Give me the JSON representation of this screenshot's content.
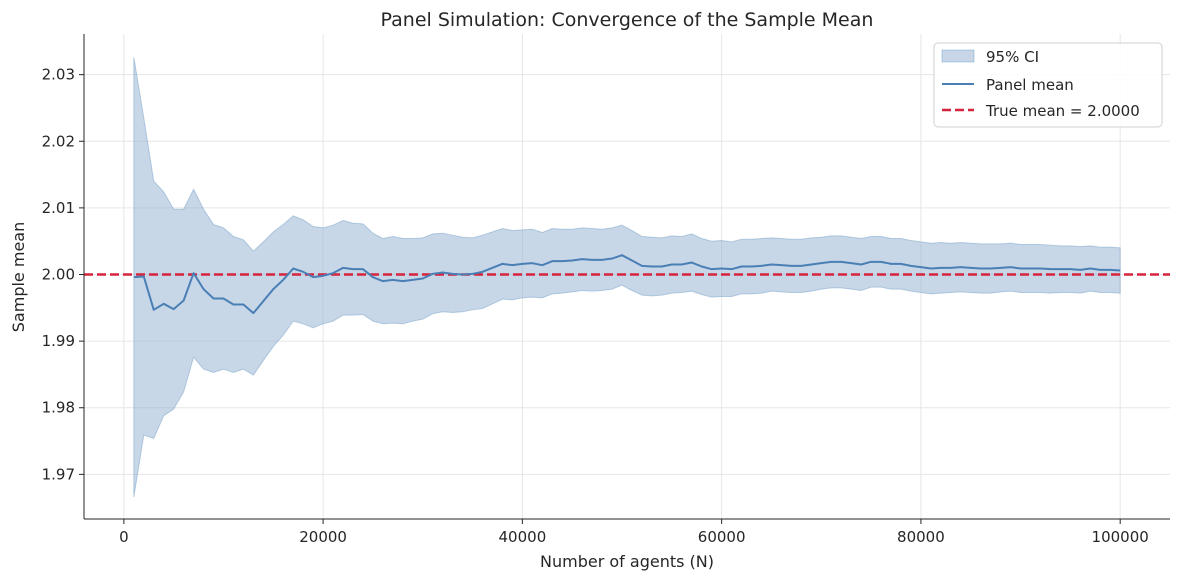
{
  "chart_data": {
    "type": "line",
    "title": "Panel Simulation: Convergence of the Sample Mean",
    "xlabel": "Number of agents (N)",
    "ylabel": "Sample mean",
    "xlim": [
      -4000,
      105000
    ],
    "ylim": [
      1.9633,
      2.0361
    ],
    "xticks": [
      0,
      20000,
      40000,
      60000,
      80000,
      100000
    ],
    "yticks": [
      1.97,
      1.98,
      1.99,
      2.0,
      2.01,
      2.02,
      2.03
    ],
    "ytick_labels": [
      "1.97",
      "1.98",
      "1.99",
      "2.00",
      "2.01",
      "2.02",
      "2.03"
    ],
    "grid": true,
    "legend_position": "top-right",
    "colors": {
      "band": "#8fb0d1",
      "band_edge": "#6f9cc4",
      "mean": "#4a7fb5",
      "true": "#d6243c"
    },
    "legend": [
      {
        "label": "95% CI"
      },
      {
        "label": "Panel mean"
      },
      {
        "label": "True mean = 2.0000"
      }
    ],
    "true_mean": 2.0,
    "x": [
      1000,
      2000,
      3000,
      4000,
      5000,
      6000,
      7000,
      8000,
      9000,
      10000,
      11000,
      12000,
      13000,
      14000,
      15000,
      16000,
      17000,
      18000,
      19000,
      20000,
      21000,
      22000,
      23000,
      24000,
      25000,
      26000,
      27000,
      28000,
      29000,
      30000,
      31000,
      32000,
      33000,
      34000,
      35000,
      36000,
      37000,
      38000,
      39000,
      40000,
      41000,
      42000,
      43000,
      44000,
      45000,
      46000,
      47000,
      48000,
      49000,
      50000,
      51000,
      52000,
      53000,
      54000,
      55000,
      56000,
      57000,
      58000,
      59000,
      60000,
      61000,
      62000,
      63000,
      64000,
      65000,
      66000,
      67000,
      68000,
      69000,
      70000,
      71000,
      72000,
      73000,
      74000,
      75000,
      76000,
      77000,
      78000,
      79000,
      80000,
      81000,
      82000,
      83000,
      84000,
      85000,
      86000,
      87000,
      88000,
      89000,
      90000,
      91000,
      92000,
      93000,
      94000,
      95000,
      96000,
      97000,
      98000,
      99000,
      100000
    ],
    "series": [
      {
        "name": "Panel mean",
        "values": [
          1.9996,
          1.9997,
          1.9947,
          1.9956,
          1.9948,
          1.9961,
          2.0002,
          1.9978,
          1.9964,
          1.9964,
          1.9955,
          1.9955,
          1.9942,
          1.996,
          1.9978,
          1.9992,
          2.0009,
          2.0004,
          1.9996,
          1.9998,
          2.0002,
          2.001,
          2.0008,
          2.0008,
          1.9996,
          1.999,
          1.9992,
          1.999,
          1.9992,
          1.9994,
          2.0001,
          2.0003,
          2.0001,
          2.0,
          2.0001,
          2.0004,
          2.001,
          2.0016,
          2.0014,
          2.0016,
          2.0017,
          2.0014,
          2.002,
          2.002,
          2.0021,
          2.0023,
          2.0022,
          2.0022,
          2.0024,
          2.0029,
          2.0021,
          2.0013,
          2.0012,
          2.0012,
          2.0015,
          2.0015,
          2.0018,
          2.0012,
          2.0008,
          2.0009,
          2.0008,
          2.0012,
          2.0012,
          2.0013,
          2.0015,
          2.0014,
          2.0013,
          2.0013,
          2.0015,
          2.0017,
          2.0019,
          2.0019,
          2.0017,
          2.0015,
          2.0019,
          2.0019,
          2.0016,
          2.0016,
          2.0013,
          2.0011,
          2.0009,
          2.001,
          2.001,
          2.0011,
          2.001,
          2.0009,
          2.0009,
          2.001,
          2.0011,
          2.0009,
          2.0009,
          2.0009,
          2.0008,
          2.0008,
          2.0008,
          2.0007,
          2.0009,
          2.0007,
          2.0007,
          2.0006
        ]
      },
      {
        "name": "95% CI upper",
        "values": [
          2.0326,
          2.0235,
          2.014,
          2.0124,
          2.0098,
          2.0098,
          2.0128,
          2.0098,
          2.0075,
          2.007,
          2.0057,
          2.0052,
          2.0035,
          2.0049,
          2.0064,
          2.0075,
          2.0088,
          2.0082,
          2.0072,
          2.007,
          2.0074,
          2.0081,
          2.0077,
          2.0076,
          2.0062,
          2.0054,
          2.0057,
          2.0054,
          2.0054,
          2.0055,
          2.0061,
          2.0062,
          2.0059,
          2.0056,
          2.0055,
          2.0059,
          2.0064,
          2.0069,
          2.0066,
          2.0067,
          2.0068,
          2.0063,
          2.0069,
          2.0068,
          2.0068,
          2.007,
          2.0069,
          2.0068,
          2.007,
          2.0074,
          2.0066,
          2.0057,
          2.0056,
          2.0055,
          2.0058,
          2.0057,
          2.0061,
          2.0054,
          2.005,
          2.0051,
          2.0049,
          2.0053,
          2.0053,
          2.0054,
          2.0055,
          2.0054,
          2.0053,
          2.0053,
          2.0055,
          2.0056,
          2.0058,
          2.0058,
          2.0056,
          2.0054,
          2.0057,
          2.0057,
          2.0054,
          2.0054,
          2.0051,
          2.0049,
          2.0047,
          2.0048,
          2.0047,
          2.0048,
          2.0047,
          2.0046,
          2.0046,
          2.0046,
          2.0047,
          2.0045,
          2.0045,
          2.0045,
          2.0044,
          2.0043,
          2.0043,
          2.0042,
          2.0043,
          2.0041,
          2.0041,
          2.004
        ]
      },
      {
        "name": "95% CI lower",
        "values": [
          1.9666,
          1.9759,
          1.9754,
          1.9788,
          1.9798,
          1.9824,
          1.9876,
          1.9858,
          1.9853,
          1.9858,
          1.9853,
          1.9858,
          1.9849,
          1.9871,
          1.9892,
          1.9909,
          1.993,
          1.9926,
          1.992,
          1.9926,
          1.993,
          1.9939,
          1.9939,
          1.994,
          1.993,
          1.9926,
          1.9927,
          1.9926,
          1.993,
          1.9933,
          1.9941,
          1.9944,
          1.9943,
          1.9944,
          1.9947,
          1.9949,
          1.9956,
          1.9963,
          1.9962,
          1.9965,
          1.9966,
          1.9965,
          1.9971,
          1.9972,
          1.9974,
          1.9976,
          1.9975,
          1.9976,
          1.9978,
          1.9984,
          1.9976,
          1.9969,
          1.9968,
          1.9969,
          1.9972,
          1.9973,
          1.9975,
          1.997,
          1.9966,
          1.9967,
          1.9967,
          1.9971,
          1.9971,
          1.9972,
          1.9975,
          1.9974,
          1.9973,
          1.9973,
          1.9975,
          1.9978,
          1.998,
          1.998,
          1.9978,
          1.9976,
          1.9981,
          1.9981,
          1.9978,
          1.9978,
          1.9975,
          1.9973,
          1.9971,
          1.9972,
          1.9973,
          1.9974,
          1.9973,
          1.9972,
          1.9972,
          1.9974,
          1.9975,
          1.9973,
          1.9973,
          1.9973,
          1.9972,
          1.9973,
          1.9973,
          1.9972,
          1.9975,
          1.9973,
          1.9973,
          1.9972
        ]
      }
    ]
  }
}
